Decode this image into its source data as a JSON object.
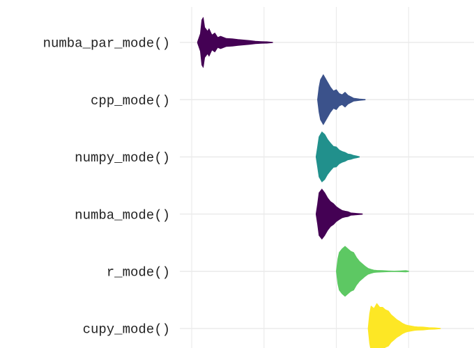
{
  "chart_data": {
    "type": "violin",
    "title": "",
    "xlabel": "",
    "ylabel": "",
    "x_tick_labels": [],
    "xlim": [
      0,
      100
    ],
    "x_grid": [
      0,
      25,
      50,
      75,
      100
    ],
    "categories": [
      "numba_par_mode()",
      "cpp_mode()",
      "numpy_mode()",
      "numba_mode()",
      "r_mode()",
      "cupy_mode()"
    ],
    "series": [
      {
        "name": "numba_par_mode()",
        "color": "#440154",
        "profile": [
          [
            2,
            0.02
          ],
          [
            3,
            0.35
          ],
          [
            3.5,
            0.9
          ],
          [
            4,
            1.0
          ],
          [
            4.5,
            0.6
          ],
          [
            5.5,
            0.45
          ],
          [
            6,
            0.55
          ],
          [
            7,
            0.3
          ],
          [
            8,
            0.38
          ],
          [
            9,
            0.2
          ],
          [
            10,
            0.25
          ],
          [
            12,
            0.16
          ],
          [
            14,
            0.15
          ],
          [
            16,
            0.12
          ],
          [
            18,
            0.1
          ],
          [
            20,
            0.08
          ],
          [
            22,
            0.05
          ],
          [
            24,
            0.04
          ],
          [
            26,
            0.03
          ],
          [
            28,
            0.01
          ]
        ]
      },
      {
        "name": "cpp_mode()",
        "color": "#3B528B",
        "profile": [
          [
            43.5,
            0.02
          ],
          [
            44,
            0.5
          ],
          [
            44.5,
            0.8
          ],
          [
            45,
            0.9
          ],
          [
            45.5,
            1.0
          ],
          [
            46,
            0.9
          ],
          [
            47,
            0.7
          ],
          [
            48,
            0.5
          ],
          [
            49,
            0.35
          ],
          [
            50,
            0.4
          ],
          [
            51,
            0.25
          ],
          [
            52,
            0.2
          ],
          [
            53,
            0.3
          ],
          [
            54,
            0.18
          ],
          [
            55,
            0.12
          ],
          [
            56,
            0.06
          ],
          [
            58,
            0.03
          ],
          [
            60,
            0.01
          ]
        ]
      },
      {
        "name": "numpy_mode()",
        "color": "#21908C",
        "profile": [
          [
            43,
            0.02
          ],
          [
            43.5,
            0.4
          ],
          [
            44,
            0.8
          ],
          [
            45,
            1.0
          ],
          [
            46,
            0.9
          ],
          [
            47,
            0.7
          ],
          [
            48,
            0.55
          ],
          [
            49,
            0.42
          ],
          [
            50,
            0.4
          ],
          [
            51,
            0.28
          ],
          [
            52,
            0.22
          ],
          [
            53,
            0.18
          ],
          [
            54,
            0.12
          ],
          [
            55,
            0.1
          ],
          [
            56,
            0.06
          ],
          [
            57,
            0.04
          ],
          [
            58,
            0.01
          ]
        ]
      },
      {
        "name": "numba_mode()",
        "color": "#440154",
        "profile": [
          [
            43,
            0.02
          ],
          [
            43.5,
            0.4
          ],
          [
            44,
            0.85
          ],
          [
            45,
            1.0
          ],
          [
            46,
            0.85
          ],
          [
            47,
            0.65
          ],
          [
            48,
            0.5
          ],
          [
            49,
            0.42
          ],
          [
            50,
            0.3
          ],
          [
            51,
            0.22
          ],
          [
            52,
            0.15
          ],
          [
            53,
            0.12
          ],
          [
            54,
            0.1
          ],
          [
            55,
            0.05
          ],
          [
            57,
            0.03
          ],
          [
            59,
            0.01
          ]
        ]
      },
      {
        "name": "r_mode()",
        "color": "#5DC863",
        "profile": [
          [
            50,
            0.02
          ],
          [
            50.5,
            0.5
          ],
          [
            51,
            0.75
          ],
          [
            52,
            0.9
          ],
          [
            53,
            1.0
          ],
          [
            54,
            0.9
          ],
          [
            55,
            0.8
          ],
          [
            56,
            0.75
          ],
          [
            57,
            0.55
          ],
          [
            58,
            0.4
          ],
          [
            59,
            0.3
          ],
          [
            60,
            0.2
          ],
          [
            61,
            0.12
          ],
          [
            62,
            0.08
          ],
          [
            63,
            0.05
          ],
          [
            64,
            0.04
          ],
          [
            66,
            0.03
          ],
          [
            68,
            0.02
          ],
          [
            70,
            0.01
          ],
          [
            72,
            0.02
          ],
          [
            74,
            0.03
          ],
          [
            75,
            0.01
          ]
        ]
      },
      {
        "name": "cupy_mode()",
        "color": "#FDE725",
        "profile": [
          [
            61,
            0.02
          ],
          [
            61.5,
            0.6
          ],
          [
            62,
            0.9
          ],
          [
            63,
            0.8
          ],
          [
            64,
            1.0
          ],
          [
            65,
            0.85
          ],
          [
            66,
            0.85
          ],
          [
            67,
            0.75
          ],
          [
            68,
            0.7
          ],
          [
            69,
            0.55
          ],
          [
            70,
            0.45
          ],
          [
            71,
            0.35
          ],
          [
            72,
            0.28
          ],
          [
            73,
            0.2
          ],
          [
            74,
            0.15
          ],
          [
            75,
            0.12
          ],
          [
            76,
            0.1
          ],
          [
            77,
            0.08
          ],
          [
            78,
            0.07
          ],
          [
            80,
            0.06
          ],
          [
            82,
            0.04
          ],
          [
            84,
            0.03
          ],
          [
            86,
            0.01
          ]
        ]
      }
    ]
  }
}
